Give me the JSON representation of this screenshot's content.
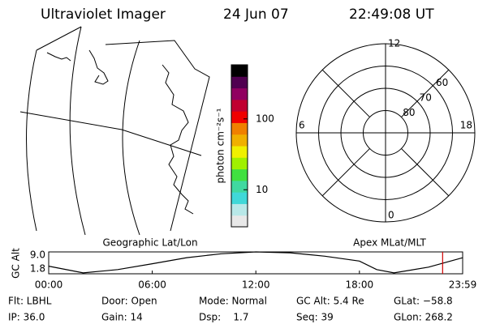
{
  "header": {
    "title": "Ultraviolet Imager",
    "date": "24 Jun 07",
    "time": "22:49:08 UT"
  },
  "colorbar": {
    "label": "photon cm⁻²s⁻¹",
    "log_scale": true,
    "lim": [
      3,
      580
    ],
    "ticks": [
      10,
      100
    ],
    "colors": [
      "#e8e8e8",
      "#b8e8e8",
      "#40d8d8",
      "#40d8a0",
      "#40e040",
      "#a0f000",
      "#f0f000",
      "#f0b000",
      "#f08000",
      "#f00000",
      "#c00030",
      "#900060",
      "#500050",
      "#000000"
    ]
  },
  "polar": {
    "lat_lim": [
      50,
      90
    ],
    "lat_rings": [
      60,
      70,
      80
    ],
    "mlt_labels": [
      12,
      18,
      6,
      0
    ]
  },
  "chart_data": {
    "type": "line",
    "left_title": "Geographic Lat/Lon",
    "right_title": "Apex MLat/MLT",
    "y_label": "GC Alt",
    "x": [
      0,
      2,
      4,
      6,
      8,
      10,
      12,
      14,
      16,
      18,
      19,
      20,
      22,
      24
    ],
    "values": [
      4.3,
      2.1,
      3.2,
      5.1,
      7.1,
      8.4,
      9.0,
      8.7,
      7.6,
      6.0,
      3.2,
      2.1,
      4.0,
      7.1
    ],
    "color": "#000000",
    "marker_x": 22.82,
    "marker_color": "#d00000",
    "xlim": [
      0,
      23.98
    ],
    "xticks": [
      {
        "value": 0,
        "label": "00:00"
      },
      {
        "value": 6,
        "label": "06:00"
      },
      {
        "value": 12,
        "label": "12:00"
      },
      {
        "value": 18,
        "label": "18:00"
      },
      {
        "value": 23.98,
        "label": "23:59"
      }
    ],
    "ylim": [
      1.8,
      9.0
    ],
    "yticks": [
      1.8,
      {
        "value": 9.0,
        "label": "9.0"
      }
    ]
  },
  "footer": {
    "rows": [
      [
        "Flt: LBHL",
        "Door: Open",
        "Mode: Normal",
        "GC Alt: 5.4 Re",
        "GLat: −58.8"
      ],
      [
        "IP: 36.0",
        "Gain: 14",
        "Dsp:    1.7",
        "Seq: 39",
        "GLon: 268.2"
      ]
    ]
  }
}
